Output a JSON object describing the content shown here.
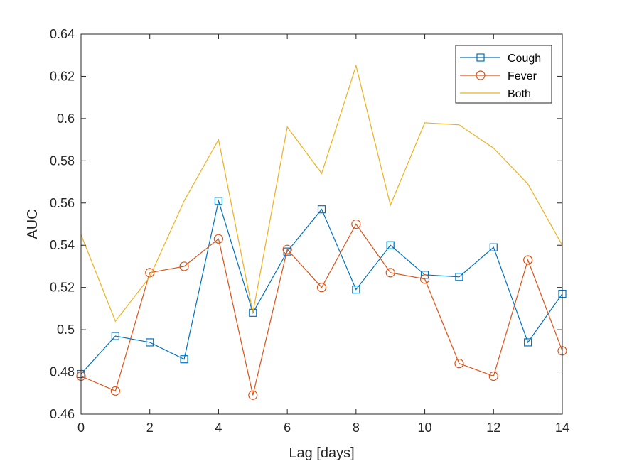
{
  "chart_data": {
    "type": "line",
    "xlabel": "Lag [days]",
    "ylabel": "AUC",
    "xlim": [
      0,
      14
    ],
    "ylim": [
      0.46,
      0.64
    ],
    "xticks": [
      0,
      2,
      4,
      6,
      8,
      10,
      12,
      14
    ],
    "yticks": [
      0.46,
      0.48,
      0.5,
      0.52,
      0.54,
      0.56,
      0.58,
      0.6,
      0.62,
      0.64
    ],
    "xtick_labels": [
      "0",
      "2",
      "4",
      "6",
      "8",
      "10",
      "12",
      "14"
    ],
    "ytick_labels": [
      "0.46",
      "0.48",
      "0.5",
      "0.52",
      "0.54",
      "0.56",
      "0.58",
      "0.6",
      "0.62",
      "0.64"
    ],
    "grid": false,
    "legend_position": "top-right",
    "x": [
      0,
      1,
      2,
      3,
      4,
      5,
      6,
      7,
      8,
      9,
      10,
      11,
      12,
      13,
      14
    ],
    "series": [
      {
        "name": "Cough",
        "color": "#0072BD",
        "marker": "square",
        "values": [
          0.479,
          0.497,
          0.494,
          0.486,
          0.561,
          0.508,
          0.537,
          0.557,
          0.519,
          0.54,
          0.526,
          0.525,
          0.539,
          0.494,
          0.517
        ]
      },
      {
        "name": "Fever",
        "color": "#D95319",
        "marker": "circle",
        "values": [
          0.478,
          0.471,
          0.527,
          0.53,
          0.543,
          0.469,
          0.538,
          0.52,
          0.55,
          0.527,
          0.524,
          0.484,
          0.478,
          0.533,
          0.49
        ]
      },
      {
        "name": "Both",
        "color": "#EDB120",
        "marker": "none",
        "values": [
          0.545,
          0.504,
          0.525,
          0.561,
          0.59,
          0.508,
          0.596,
          0.574,
          0.625,
          0.559,
          0.598,
          0.597,
          0.586,
          0.569,
          0.54
        ]
      }
    ]
  }
}
